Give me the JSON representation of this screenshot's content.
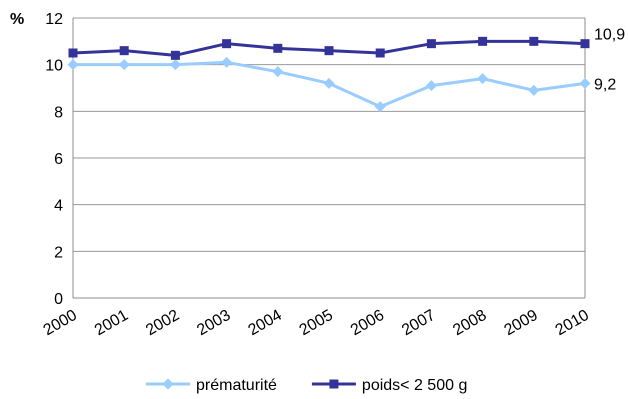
{
  "chart_data": {
    "type": "line",
    "unit_label": "%",
    "x": [
      "2000",
      "2001",
      "2002",
      "2003",
      "2004",
      "2005",
      "2006",
      "2007",
      "2008",
      "2009",
      "2010"
    ],
    "ylim": [
      0,
      12
    ],
    "yticks": [
      0,
      2,
      4,
      6,
      8,
      10,
      12
    ],
    "ytick_labels": [
      "0",
      "2",
      "4",
      "6",
      "8",
      "10",
      "12"
    ],
    "grid": true,
    "legend_position": "bottom",
    "series": [
      {
        "name": "prématurité",
        "color": "#99ccff",
        "marker": "diamond",
        "values": [
          10.0,
          10.0,
          10.0,
          10.1,
          9.7,
          9.2,
          8.2,
          9.1,
          9.4,
          8.9,
          9.2
        ],
        "end_label": "9,2"
      },
      {
        "name": "poids< 2 500 g",
        "color": "#333399",
        "marker": "square",
        "values": [
          10.5,
          10.6,
          10.4,
          10.9,
          10.7,
          10.6,
          10.5,
          10.9,
          11.0,
          11.0,
          10.9
        ],
        "end_label": "10,9"
      }
    ]
  }
}
